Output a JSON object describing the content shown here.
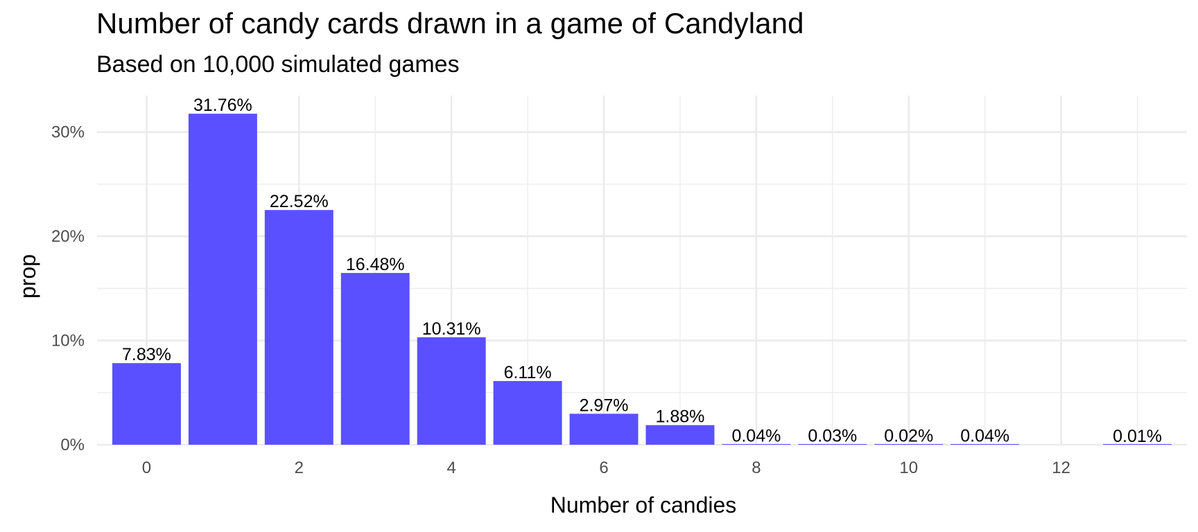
{
  "chart_data": {
    "type": "bar",
    "title": "Number of candy cards drawn in a game of Candyland",
    "subtitle": "Based on 10,000 simulated games",
    "xlabel": "Number of candies",
    "ylabel": "prop",
    "x": [
      0,
      1,
      2,
      3,
      4,
      5,
      6,
      7,
      8,
      9,
      10,
      11,
      13
    ],
    "values": [
      0.0783,
      0.3176,
      0.2252,
      0.1648,
      0.1031,
      0.0611,
      0.0297,
      0.0188,
      0.0004,
      0.0003,
      0.0002,
      0.0004,
      0.0001
    ],
    "data_labels": [
      "7.83%",
      "31.76%",
      "22.52%",
      "16.48%",
      "10.31%",
      "6.11%",
      "2.97%",
      "1.88%",
      "0.04%",
      "0.03%",
      "0.02%",
      "0.04%",
      "0.01%"
    ],
    "x_ticks": [
      0,
      2,
      4,
      6,
      8,
      10,
      12
    ],
    "x_tick_labels": [
      "0",
      "2",
      "4",
      "6",
      "8",
      "10",
      "12"
    ],
    "y_ticks": [
      0,
      0.1,
      0.2,
      0.3
    ],
    "y_tick_labels": [
      "0%",
      "10%",
      "20%",
      "30%"
    ],
    "xlim": [
      -0.65,
      13.65
    ],
    "ylim": [
      0,
      0.335
    ],
    "bar_color": "#5a50ff",
    "grid": true,
    "legend": "none"
  }
}
